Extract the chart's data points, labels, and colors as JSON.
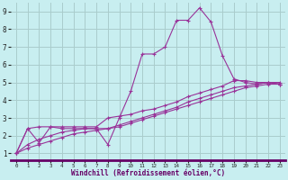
{
  "xlabel": "Windchill (Refroidissement éolien,°C)",
  "background_color": "#c8eef0",
  "grid_color": "#aacccc",
  "line_color": "#993399",
  "xlabel_color": "#660066",
  "xlim": [
    -0.5,
    23.5
  ],
  "ylim": [
    0.6,
    9.5
  ],
  "xticks": [
    0,
    1,
    2,
    3,
    4,
    5,
    6,
    7,
    8,
    9,
    10,
    11,
    12,
    13,
    14,
    15,
    16,
    17,
    18,
    19,
    20,
    21,
    22,
    23
  ],
  "yticks": [
    1,
    2,
    3,
    4,
    5,
    6,
    7,
    8,
    9
  ],
  "series": [
    {
      "x": [
        0,
        1,
        2,
        3,
        4,
        5,
        6,
        7,
        8,
        9,
        10,
        11,
        12,
        13,
        14,
        15,
        16,
        17,
        18,
        19,
        20,
        21,
        22,
        23
      ],
      "y": [
        1.0,
        2.4,
        1.6,
        2.5,
        2.4,
        2.4,
        2.4,
        2.4,
        1.5,
        3.0,
        4.5,
        6.6,
        6.6,
        7.0,
        8.5,
        8.5,
        9.2,
        8.4,
        6.5,
        5.2,
        5.0,
        4.9,
        5.0,
        4.9
      ]
    },
    {
      "x": [
        0,
        1,
        2,
        3,
        4,
        5,
        6,
        7,
        8,
        9,
        10,
        11,
        12,
        13,
        14,
        15,
        16,
        17,
        18,
        19,
        20,
        21,
        22,
        23
      ],
      "y": [
        1.0,
        2.4,
        2.5,
        2.5,
        2.5,
        2.5,
        2.5,
        2.5,
        3.0,
        3.1,
        3.2,
        3.4,
        3.5,
        3.7,
        3.9,
        4.2,
        4.4,
        4.6,
        4.8,
        5.1,
        5.1,
        5.0,
        5.0,
        5.0
      ]
    },
    {
      "x": [
        0,
        1,
        2,
        3,
        4,
        5,
        6,
        7,
        8,
        9,
        10,
        11,
        12,
        13,
        14,
        15,
        16,
        17,
        18,
        19,
        20,
        21,
        22,
        23
      ],
      "y": [
        1.0,
        1.5,
        1.8,
        2.0,
        2.2,
        2.3,
        2.4,
        2.4,
        2.4,
        2.6,
        2.8,
        3.0,
        3.2,
        3.4,
        3.6,
        3.9,
        4.1,
        4.3,
        4.5,
        4.7,
        4.8,
        4.9,
        5.0,
        4.9
      ]
    },
    {
      "x": [
        0,
        1,
        2,
        3,
        4,
        5,
        6,
        7,
        8,
        9,
        10,
        11,
        12,
        13,
        14,
        15,
        16,
        17,
        18,
        19,
        20,
        21,
        22,
        23
      ],
      "y": [
        1.0,
        1.3,
        1.5,
        1.7,
        1.9,
        2.1,
        2.2,
        2.3,
        2.4,
        2.5,
        2.7,
        2.9,
        3.1,
        3.3,
        3.5,
        3.7,
        3.9,
        4.1,
        4.3,
        4.5,
        4.7,
        4.8,
        4.9,
        4.9
      ]
    }
  ]
}
